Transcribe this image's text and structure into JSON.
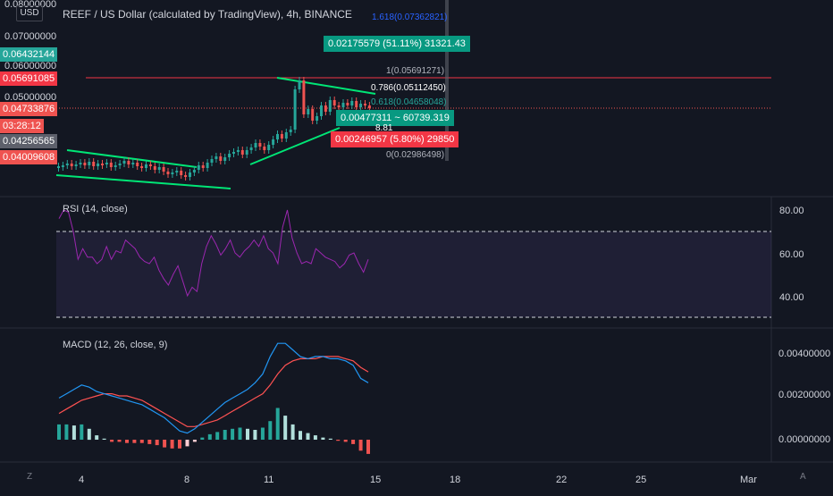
{
  "header": {
    "title": "REEF / US Dollar (calculated by TradingView), 4h, BINANCE",
    "currency": "USD"
  },
  "price_axis": {
    "ticks": [
      "0.08000000",
      "0.07000000",
      "0.06000000",
      "0.05000000"
    ]
  },
  "price_tags": {
    "green_top": "0.06432144",
    "red_resistance": "0.05691085",
    "red_current": "0.04733876",
    "countdown": "03:28:12",
    "gray": "0.04256565",
    "red_low": "0.04009608"
  },
  "fib_levels": [
    {
      "text": "1.618(0.07362821)",
      "color": "#2962ff"
    },
    {
      "text": "1(0.05691271)",
      "color": "#b2b5be"
    },
    {
      "text": "0.786(0.05112450)",
      "color": "#ffffff"
    },
    {
      "text": "0.618(0.04658048)",
      "color": "#26a69a"
    },
    {
      "text": "0(0.02986498)",
      "color": "#b2b5be"
    }
  ],
  "measure_boxes": {
    "green_top": "0.02175579 (51.11%) 31321.43",
    "green_mid": "0.00477311 ~ 60739.319",
    "mid_sub": "8.81",
    "red": "0.00246957 (5.80%) 29850"
  },
  "rsi": {
    "title": "RSI (14, close)",
    "ticks": [
      "80.00",
      "60.00",
      "40.00"
    ],
    "upper": 70,
    "lower": 30,
    "values": [
      76,
      80,
      79,
      70,
      57,
      62,
      58,
      58,
      55,
      57,
      63,
      57,
      61,
      60,
      66,
      64,
      62,
      58,
      56,
      55,
      58,
      52,
      48,
      45,
      50,
      54,
      47,
      40,
      44,
      42,
      55,
      63,
      68,
      64,
      59,
      62,
      66,
      60,
      58,
      61,
      63,
      66,
      63,
      68,
      62,
      60,
      55,
      72,
      80,
      67,
      60,
      55,
      56,
      55,
      62,
      60,
      58,
      57,
      56,
      53,
      55,
      59,
      60,
      55,
      51,
      57
    ]
  },
  "macd": {
    "title": "MACD (12, 26, close, 9)",
    "ticks": [
      "0.00400000",
      "0.00200000",
      "0.00000000"
    ],
    "macd_line": [
      0.0019,
      0.0021,
      0.0023,
      0.0025,
      0.0024,
      0.0022,
      0.0021,
      0.002,
      0.0019,
      0.0018,
      0.0017,
      0.0016,
      0.0014,
      0.0012,
      0.001,
      0.0007,
      0.0004,
      0.0003,
      0.0005,
      0.0008,
      0.0011,
      0.0014,
      0.0017,
      0.0019,
      0.0021,
      0.0023,
      0.0026,
      0.003,
      0.0038,
      0.0044,
      0.0044,
      0.0041,
      0.0038,
      0.0037,
      0.0038,
      0.0038,
      0.0037,
      0.0037,
      0.0036,
      0.0034,
      0.0028,
      0.0026
    ],
    "signal_line": [
      0.0012,
      0.0014,
      0.0016,
      0.0018,
      0.0019,
      0.002,
      0.0021,
      0.0021,
      0.002,
      0.002,
      0.0019,
      0.0018,
      0.0016,
      0.0014,
      0.0012,
      0.001,
      0.0008,
      0.0006,
      0.0006,
      0.0007,
      0.0008,
      0.0009,
      0.0011,
      0.0013,
      0.0015,
      0.0017,
      0.0019,
      0.0021,
      0.0025,
      0.003,
      0.0034,
      0.0036,
      0.0037,
      0.0037,
      0.0037,
      0.0038,
      0.0038,
      0.0038,
      0.0037,
      0.0036,
      0.0033,
      0.0031
    ],
    "histogram": [
      0.0007,
      0.0007,
      0.00065,
      0.0007,
      0.0005,
      0.0002,
      5e-05,
      -0.0001,
      -0.0001,
      -0.00015,
      -0.00015,
      -0.00015,
      -0.0002,
      -0.00025,
      -0.00035,
      -0.0004,
      -0.0004,
      -0.0003,
      -0.0001,
      0.0001,
      0.00025,
      0.00035,
      0.00045,
      0.0005,
      0.00055,
      0.0005,
      0.00045,
      0.00055,
      0.00085,
      0.00145,
      0.0011,
      0.0007,
      0.0004,
      0.0003,
      0.0002,
      0.0001,
      5e-05,
      -5e-05,
      -0.0001,
      -0.0002,
      -0.0005,
      -0.00065
    ]
  },
  "time_axis": {
    "labels": [
      "4",
      "8",
      "11",
      "15",
      "18",
      "22",
      "25",
      "Mar"
    ]
  },
  "bottom": {
    "left_icon": "Z",
    "right_icon": "A"
  },
  "colors": {
    "up": "#26a69a",
    "down": "#ef5350",
    "trend": "#00e676",
    "rsi": "#9c27b0",
    "macd": "#2196f3",
    "signal": "#ff5252"
  }
}
